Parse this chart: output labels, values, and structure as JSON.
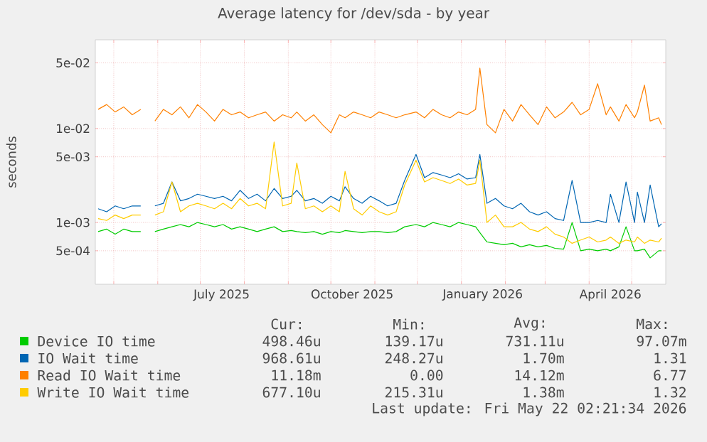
{
  "chart_data": {
    "type": "line",
    "title": "Average latency for /dev/sda - by year",
    "ylabel": "seconds",
    "x": [
      "2025-04-20",
      "2025-04-26",
      "2025-05-02",
      "2025-05-08",
      "2025-05-14",
      "2025-05-20",
      "2025-05-24",
      "2025-05-30",
      "2025-06-05",
      "2025-06-11",
      "2025-06-17",
      "2025-06-23",
      "2025-06-29",
      "2025-07-05",
      "2025-07-11",
      "2025-07-17",
      "2025-07-23",
      "2025-07-29",
      "2025-08-04",
      "2025-08-10",
      "2025-08-16",
      "2025-08-22",
      "2025-08-28",
      "2025-09-03",
      "2025-09-07",
      "2025-09-13",
      "2025-09-19",
      "2025-09-25",
      "2025-10-01",
      "2025-10-07",
      "2025-10-11",
      "2025-10-17",
      "2025-10-23",
      "2025-10-29",
      "2025-11-04",
      "2025-11-10",
      "2025-11-16",
      "2025-11-22",
      "2025-11-30",
      "2025-12-06",
      "2025-12-12",
      "2025-12-18",
      "2025-12-24",
      "2025-12-30",
      "2026-01-05",
      "2026-01-11",
      "2026-01-14",
      "2026-01-19",
      "2026-01-25",
      "2026-01-31",
      "2026-02-06",
      "2026-02-12",
      "2026-02-18",
      "2026-02-24",
      "2026-03-02",
      "2026-03-08",
      "2026-03-14",
      "2026-03-20",
      "2026-03-26",
      "2026-04-01",
      "2026-04-07",
      "2026-04-13",
      "2026-04-16",
      "2026-04-22",
      "2026-04-27",
      "2026-05-03",
      "2026-05-05",
      "2026-05-10",
      "2026-05-14",
      "2026-05-20",
      "2026-05-22"
    ],
    "series": [
      {
        "name": "Device IO time",
        "color": "#00cc00",
        "values": [
          0.0008,
          0.00085,
          0.00075,
          0.00085,
          0.0008,
          0.0008,
          null,
          0.0008,
          0.00085,
          0.0009,
          0.00095,
          0.0009,
          0.001,
          0.00095,
          0.0009,
          0.00095,
          0.00085,
          0.0009,
          0.00085,
          0.0008,
          0.00085,
          0.0009,
          0.0008,
          0.00082,
          0.0008,
          0.00078,
          0.0008,
          0.00075,
          0.0008,
          0.00078,
          0.00082,
          0.0008,
          0.00078,
          0.0008,
          0.0008,
          0.00078,
          0.0008,
          0.0009,
          0.00095,
          0.0009,
          0.001,
          0.00095,
          0.0009,
          0.001,
          0.00095,
          0.0009,
          0.00078,
          0.00062,
          0.0006,
          0.00058,
          0.0006,
          0.00055,
          0.00058,
          0.00055,
          0.00057,
          0.00053,
          0.00052,
          0.001,
          0.0005,
          0.00052,
          0.0005,
          0.00052,
          0.0005,
          0.00055,
          0.0009,
          0.0005,
          0.0005,
          0.00052,
          0.00042,
          0.0005,
          0.0005
        ]
      },
      {
        "name": "IO Wait time",
        "color": "#0066b3",
        "values": [
          0.0014,
          0.0013,
          0.0015,
          0.0014,
          0.0015,
          0.0015,
          null,
          0.0015,
          0.0016,
          0.0027,
          0.0017,
          0.0018,
          0.002,
          0.0019,
          0.0018,
          0.0019,
          0.0017,
          0.0022,
          0.0018,
          0.002,
          0.0017,
          0.0023,
          0.0018,
          0.0019,
          0.0022,
          0.0017,
          0.0018,
          0.0016,
          0.0019,
          0.0017,
          0.0024,
          0.0018,
          0.0016,
          0.0019,
          0.0017,
          0.0015,
          0.0016,
          0.0028,
          0.0053,
          0.003,
          0.0034,
          0.0032,
          0.003,
          0.0033,
          0.0029,
          0.003,
          0.0053,
          0.0016,
          0.0018,
          0.0015,
          0.0014,
          0.0016,
          0.0013,
          0.0012,
          0.0013,
          0.0011,
          0.00105,
          0.0028,
          0.001,
          0.001,
          0.00105,
          0.001,
          0.002,
          0.001,
          0.0027,
          0.001,
          0.0021,
          0.001,
          0.0025,
          0.0009,
          0.00097
        ]
      },
      {
        "name": "Read IO Wait time",
        "color": "#ff8000",
        "values": [
          0.016,
          0.018,
          0.015,
          0.017,
          0.014,
          0.016,
          null,
          0.012,
          0.016,
          0.014,
          0.017,
          0.013,
          0.018,
          0.015,
          0.012,
          0.016,
          0.014,
          0.015,
          0.013,
          0.014,
          0.015,
          0.012,
          0.014,
          0.013,
          0.015,
          0.012,
          0.014,
          0.011,
          0.009,
          0.014,
          0.013,
          0.015,
          0.014,
          0.013,
          0.015,
          0.014,
          0.013,
          0.014,
          0.015,
          0.013,
          0.016,
          0.014,
          0.013,
          0.015,
          0.014,
          0.016,
          0.044,
          0.011,
          0.009,
          0.016,
          0.012,
          0.018,
          0.014,
          0.011,
          0.017,
          0.013,
          0.015,
          0.019,
          0.014,
          0.016,
          0.03,
          0.014,
          0.017,
          0.012,
          0.018,
          0.013,
          0.015,
          0.029,
          0.012,
          0.013,
          0.011
        ]
      },
      {
        "name": "Write IO Wait time",
        "color": "#ffcc00",
        "values": [
          0.0011,
          0.00105,
          0.0012,
          0.0011,
          0.0012,
          0.0012,
          null,
          0.0012,
          0.0013,
          0.0027,
          0.0013,
          0.0015,
          0.0016,
          0.0015,
          0.0014,
          0.0016,
          0.0014,
          0.0018,
          0.0015,
          0.0016,
          0.0014,
          0.0072,
          0.0015,
          0.0016,
          0.0043,
          0.0014,
          0.0015,
          0.0013,
          0.0015,
          0.0013,
          0.0035,
          0.0014,
          0.0012,
          0.0015,
          0.0013,
          0.0012,
          0.0013,
          0.0025,
          0.0046,
          0.0027,
          0.003,
          0.0028,
          0.0026,
          0.0029,
          0.0025,
          0.0026,
          0.0046,
          0.001,
          0.0012,
          0.0009,
          0.0009,
          0.001,
          0.00085,
          0.0008,
          0.0009,
          0.00075,
          0.0007,
          0.0006,
          0.00065,
          0.0007,
          0.00062,
          0.00065,
          0.0007,
          0.0006,
          0.00065,
          0.00062,
          0.0007,
          0.0006,
          0.00065,
          0.00062,
          0.00068
        ]
      }
    ],
    "xlim": [
      "2025-04-18",
      "2026-05-25"
    ],
    "xticks": [
      {
        "value": "2025-05-01",
        "label": null
      },
      {
        "value": "2025-06-01",
        "label": null
      },
      {
        "value": "2025-07-01",
        "label": null
      },
      {
        "value": "2025-07-16",
        "label": "July 2025"
      },
      {
        "value": "2025-08-01",
        "label": null
      },
      {
        "value": "2025-09-01",
        "label": null
      },
      {
        "value": "2025-10-01",
        "label": null
      },
      {
        "value": "2025-10-16",
        "label": "October 2025"
      },
      {
        "value": "2025-11-01",
        "label": null
      },
      {
        "value": "2025-12-01",
        "label": null
      },
      {
        "value": "2026-01-01",
        "label": null
      },
      {
        "value": "2026-01-16",
        "label": "January 2026"
      },
      {
        "value": "2026-02-01",
        "label": null
      },
      {
        "value": "2026-03-01",
        "label": null
      },
      {
        "value": "2026-04-01",
        "label": null
      },
      {
        "value": "2026-04-16",
        "label": "April 2026"
      },
      {
        "value": "2026-05-01",
        "label": null
      }
    ],
    "ylim": [
      0.00022,
      0.088
    ],
    "log": "y",
    "yticks": [
      {
        "value": 0.0005,
        "label": "5e-04"
      },
      {
        "value": 0.001,
        "label": "1e-03"
      },
      {
        "value": 0.005,
        "label": "5e-03"
      },
      {
        "value": 0.01,
        "label": "1e-02"
      },
      {
        "value": 0.05,
        "label": "5e-02"
      }
    ],
    "grid": true,
    "legend": "bottom",
    "marker": "none",
    "line_style": "solid",
    "annotations": [
      "Cur:",
      "Min:",
      "Avg:",
      "Max:",
      "498.46u",
      "139.17u",
      "731.11u",
      "97.07m",
      "968.61u",
      "248.27u",
      "1.70m",
      "1.31",
      "11.18m",
      "0.00",
      "14.12m",
      "6.77",
      "677.10u",
      "215.31u",
      "1.38m",
      "1.32",
      "Last update: Fri May 22 02:21:34 2026"
    ]
  }
}
